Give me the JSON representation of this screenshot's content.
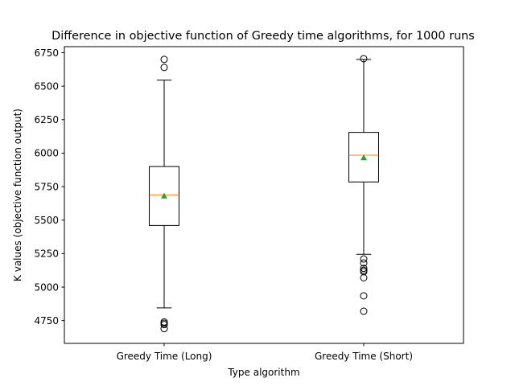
{
  "chart_data": {
    "type": "boxplot",
    "title": "Difference in objective function of Greedy time algorithms, for 1000 runs",
    "xlabel": "Type algorithm",
    "ylabel": "K values (objective function output)",
    "ylim": [
      4580,
      6795
    ],
    "yticks": [
      4750,
      5000,
      5250,
      5500,
      5750,
      6000,
      6250,
      6500,
      6750
    ],
    "grid": false,
    "legend": "none",
    "categories": [
      "Greedy Time (Long)",
      "Greedy Time (Short)"
    ],
    "boxes": [
      {
        "whisker_low": 4845,
        "q1": 5460,
        "median": 5688,
        "q3": 5900,
        "whisker_high": 6545,
        "mean": 5680,
        "outliers": [
          6700,
          6640,
          4740,
          4730,
          4720,
          4690
        ]
      },
      {
        "whisker_low": 5245,
        "q1": 5785,
        "median": 5985,
        "q3": 6155,
        "whisker_high": 6700,
        "mean": 5965,
        "outliers": [
          6705,
          5210,
          5180,
          5140,
          5125,
          5115,
          5070,
          4935,
          4820
        ]
      }
    ],
    "colors": {
      "box": "#000000",
      "median": "#ff7f0e",
      "mean": "#2ca02c",
      "outlier": "#000000"
    }
  }
}
